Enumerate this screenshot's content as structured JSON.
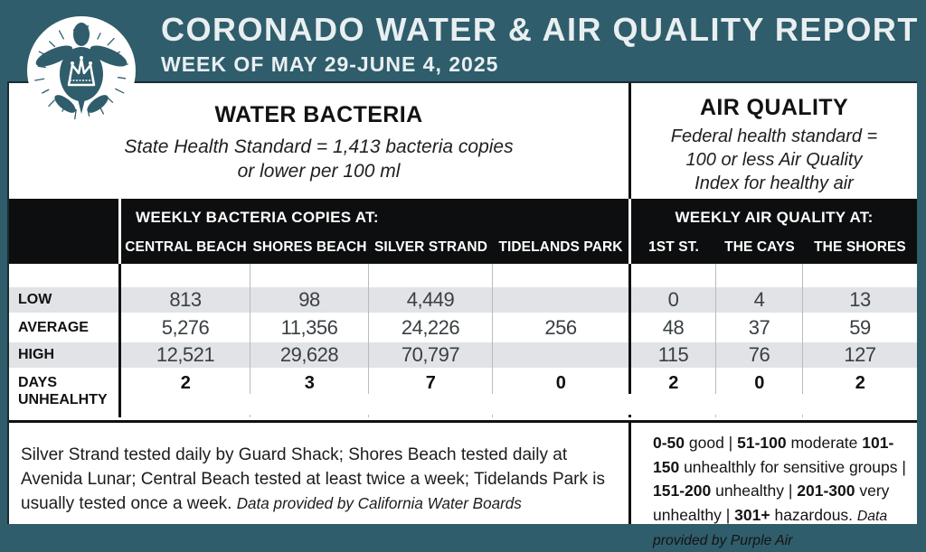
{
  "header": {
    "title": "CORONADO WATER & AIR QUALITY REPORT",
    "week": "WEEK OF MAY 29-JUNE 4, 2025"
  },
  "logo": {
    "name": "crowned-sea-turtle-logo"
  },
  "water_section": {
    "title": "WATER BACTERIA",
    "standard_line1": "State Health Standard  = 1,413 bacteria copies",
    "standard_line2": "or lower per 100 ml"
  },
  "air_section": {
    "title": "AIR QUALITY",
    "standard_line1": "Federal health standard =",
    "standard_line2": "100 or less Air Quality",
    "standard_line3": "Index for healthy air"
  },
  "table": {
    "water_header": "WEEKLY BACTERIA COPIES AT:",
    "air_header": "WEEKLY AIR QUALITY AT:",
    "water_columns": [
      "CENTRAL BEACH",
      "SHORES BEACH",
      "SILVER STRAND",
      "TIDELANDS PARK"
    ],
    "air_columns": [
      "1ST ST.",
      "THE CAYS",
      "THE SHORES"
    ],
    "rows": [
      {
        "label": "LOW",
        "label2": "",
        "values": [
          "813",
          "98",
          "4,449",
          "",
          "0",
          "4",
          "13"
        ]
      },
      {
        "label": "AVERAGE",
        "label2": "",
        "values": [
          "5,276",
          "11,356",
          "24,226",
          "256",
          "48",
          "37",
          "59"
        ]
      },
      {
        "label": "HIGH",
        "label2": "",
        "values": [
          "12,521",
          "29,628",
          "70,797",
          "",
          "115",
          "76",
          "127"
        ]
      },
      {
        "label": "DAYS",
        "label2": "UNHEALHTY",
        "values": [
          "2",
          "3",
          "7",
          "0",
          "2",
          "0",
          "2"
        ]
      }
    ]
  },
  "chart_data": {
    "type": "table",
    "title": "Coronado Water & Air Quality Report, Week of May 29-June 4, 2025",
    "columns": [
      "CENTRAL BEACH",
      "SHORES BEACH",
      "SILVER STRAND",
      "TIDELANDS PARK",
      "1ST ST.",
      "THE CAYS",
      "THE SHORES"
    ],
    "rows": [
      {
        "label": "LOW",
        "values": [
          813,
          98,
          4449,
          null,
          0,
          4,
          13
        ]
      },
      {
        "label": "AVERAGE",
        "values": [
          5276,
          11356,
          24226,
          256,
          48,
          37,
          59
        ]
      },
      {
        "label": "HIGH",
        "values": [
          12521,
          29628,
          70797,
          null,
          115,
          76,
          127
        ]
      },
      {
        "label": "DAYS UNHEALHTY",
        "values": [
          2,
          3,
          7,
          0,
          2,
          0,
          2
        ]
      }
    ]
  },
  "notes": {
    "water": [
      {
        "text": "Silver Strand tested daily by Guard Shack; Shores Beach tested daily at Avenida Lunar; Central Beach tested at least twice a week; Tidelands Park is usually tested once a week. "
      },
      {
        "text": "Data provided by California Water Boards",
        "italic": true,
        "small": true
      }
    ],
    "air_legend": [
      {
        "text": "0-50",
        "bold": true
      },
      {
        "text": " good | "
      },
      {
        "text": "51-100",
        "bold": true
      },
      {
        "text": " moderate "
      },
      {
        "text": "101-150",
        "bold": true
      },
      {
        "text": " unhealthly for sensitive groups | "
      },
      {
        "text": "151-200",
        "bold": true
      },
      {
        "text": " unhealthy | "
      },
      {
        "text": "201-300",
        "bold": true
      },
      {
        "text": " very unhealthy | "
      },
      {
        "text": "301+",
        "bold": true
      },
      {
        "text": " hazardous. "
      },
      {
        "text": "Data provided by Purple Air",
        "italic": true,
        "small": true
      }
    ]
  },
  "colors": {
    "teal": "#2f5d6b",
    "band_black": "#0d0e0f",
    "row_stripe": "#e1e3e6",
    "paper": "#ffffff"
  }
}
